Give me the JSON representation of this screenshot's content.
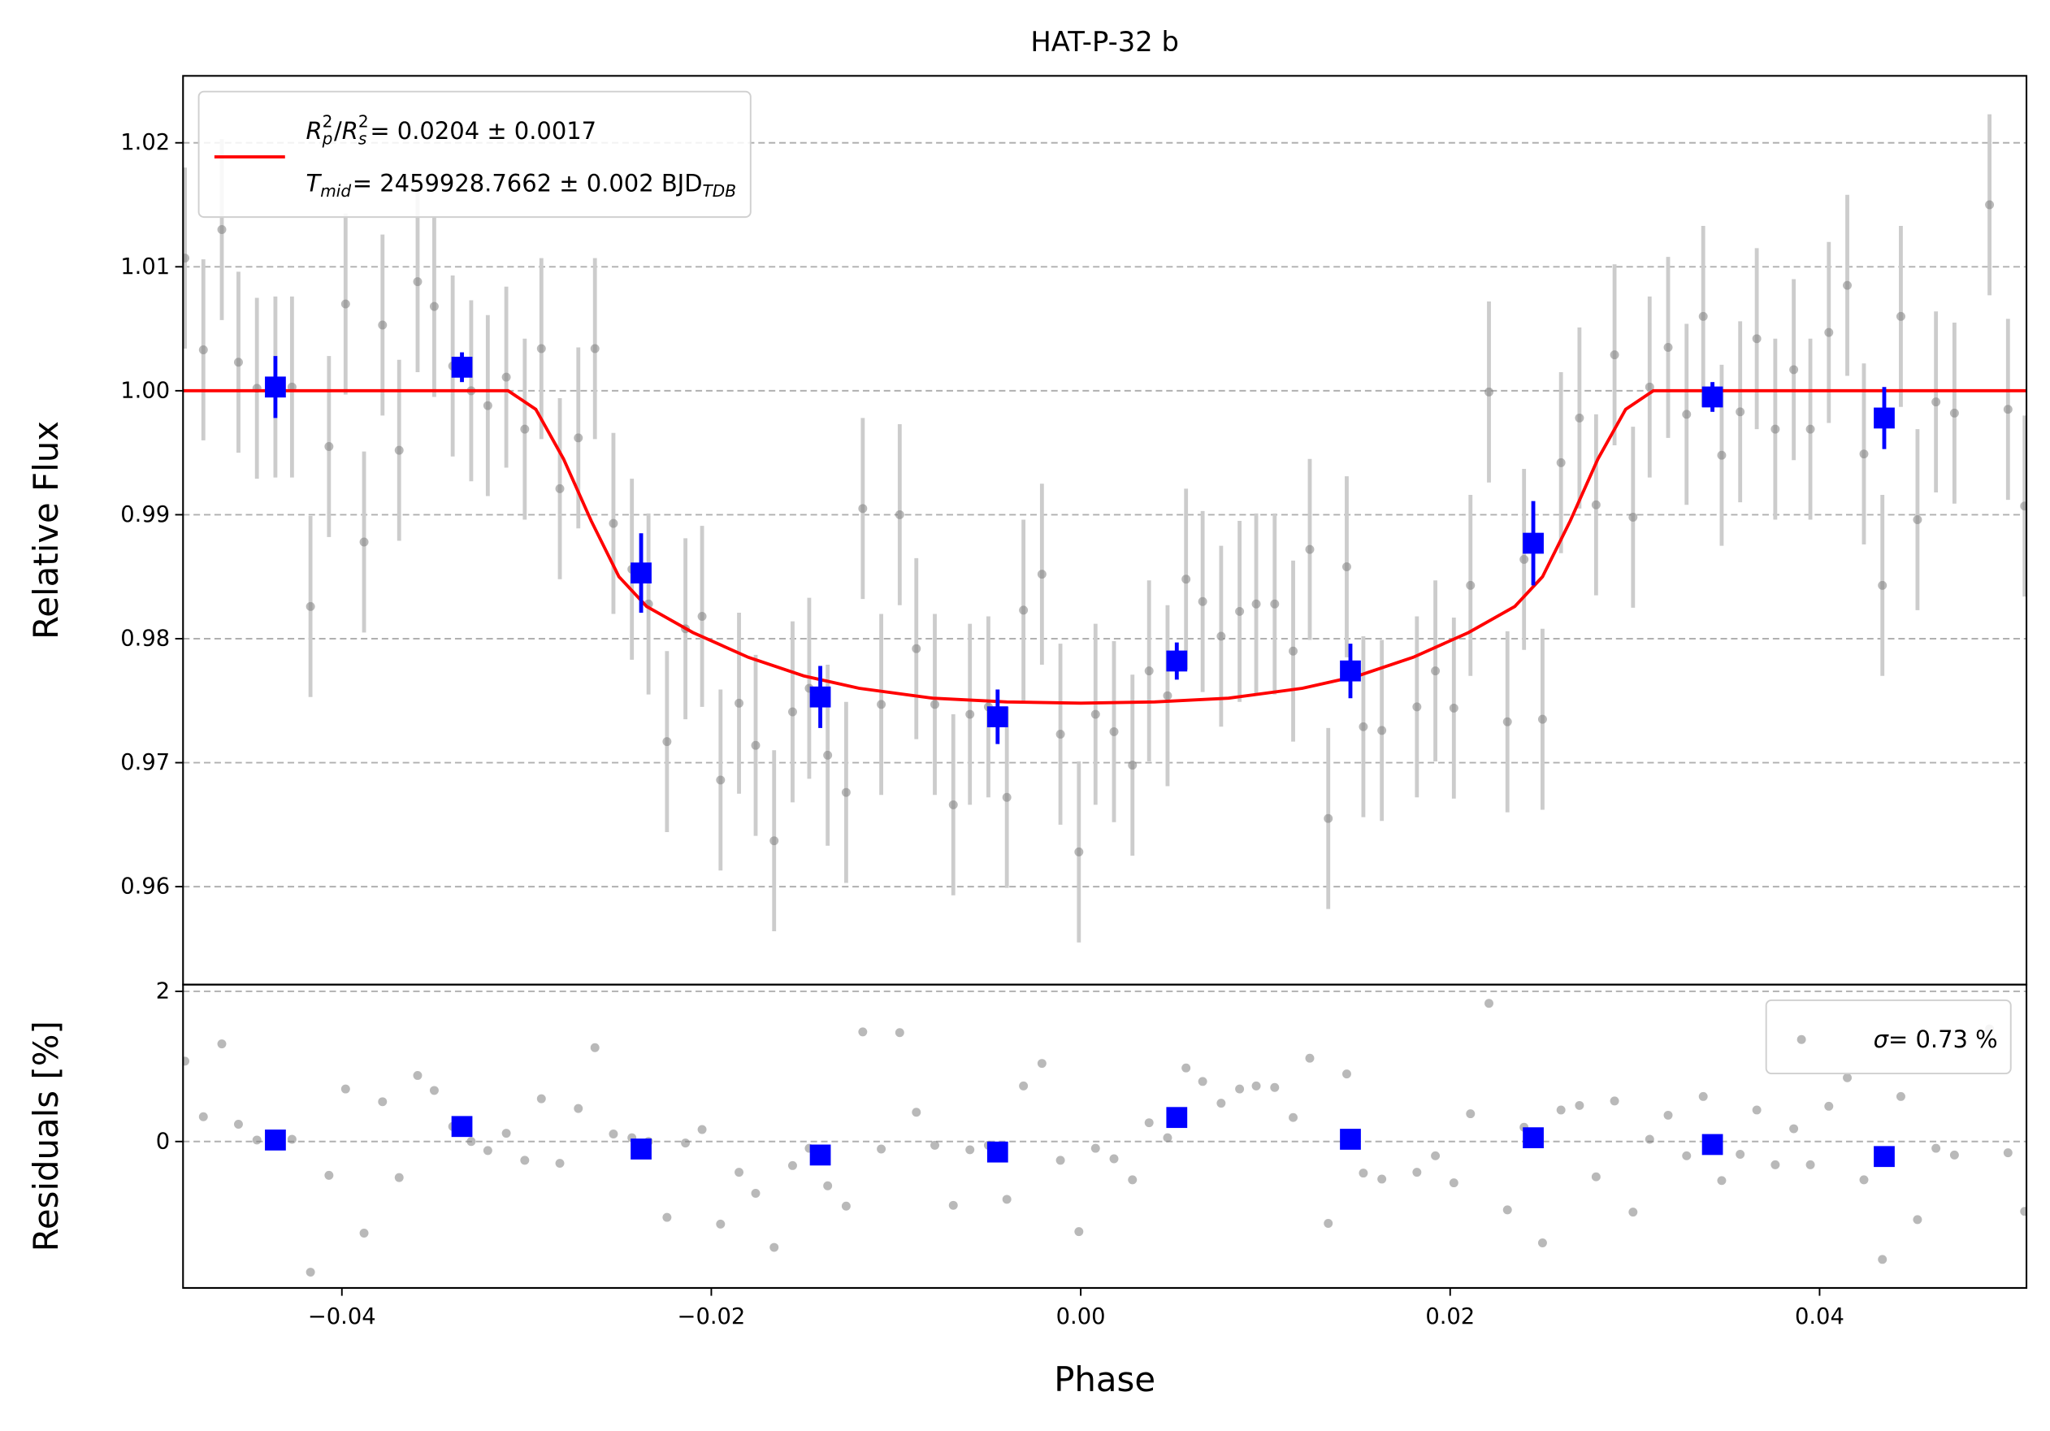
{
  "chart_data": [
    {
      "type": "scatter",
      "title": "HAT-P-32 b",
      "y_label": "Relative Flux",
      "xlim": [
        -0.0486,
        0.0512
      ],
      "ylim": [
        0.9521,
        1.0254
      ],
      "yticks": [
        0.96,
        0.97,
        0.98,
        0.99,
        {
          "value": 1,
          "label": "1.00"
        },
        1.01,
        1.02
      ],
      "grid": true,
      "legend": "upper left",
      "series": [
        {
          "type": "scatter",
          "marker": "circle",
          "color": "#808080",
          "error_color": "#cccccc",
          "error": 0.0073,
          "x": [
            -0.0485,
            -0.0475,
            -0.0465,
            -0.0456,
            -0.0446,
            -0.0436,
            -0.0427,
            -0.0417,
            -0.0407,
            -0.0398,
            -0.0388,
            -0.0378,
            -0.0369,
            -0.0359,
            -0.035,
            -0.034,
            -0.033,
            -0.0321,
            -0.0311,
            -0.0301,
            -0.0292,
            -0.0282,
            -0.0272,
            -0.0263,
            -0.0253,
            -0.0243,
            -0.0234,
            -0.0224,
            -0.0214,
            -0.0205,
            -0.0195,
            -0.0185,
            -0.0176,
            -0.0166,
            -0.0156,
            -0.0147,
            -0.0137,
            -0.0127,
            -0.0118,
            -0.0108,
            -0.0098,
            -0.0089,
            -0.0079,
            -0.0069,
            -0.006,
            -0.005,
            -0.004,
            -0.0031,
            -0.0021,
            -0.0011,
            -0.0001,
            0.0008,
            0.0018,
            0.0028,
            0.0037,
            0.0047,
            0.0057,
            0.0066,
            0.0076,
            0.0086,
            0.0095,
            0.0105,
            0.0115,
            0.0124,
            0.0134,
            0.0144,
            0.0153,
            0.0163,
            0.0182,
            0.0192,
            0.0202,
            0.0211,
            0.0221,
            0.0231,
            0.024,
            0.025,
            0.026,
            0.027,
            0.0279,
            0.0289,
            0.0299,
            0.0308,
            0.0318,
            0.0328,
            0.0337,
            0.0347,
            0.0357,
            0.0366,
            0.0376,
            0.0386,
            0.0395,
            0.0405,
            0.0415,
            0.0424,
            0.0434,
            0.0444,
            0.0453,
            0.0463,
            0.0473,
            0.0492,
            0.0502,
            0.0511
          ],
          "values": [
            1.0107,
            1.0033,
            1.013,
            1.0023,
            1.0002,
            1.0003,
            1.0003,
            0.9826,
            0.9955,
            1.007,
            0.9878,
            1.0053,
            0.9952,
            1.0088,
            1.0068,
            1.002,
            1.0,
            0.9988,
            1.0011,
            0.9969,
            1.0034,
            0.9921,
            0.9962,
            1.0034,
            0.9893,
            0.9856,
            0.9828,
            0.9717,
            0.9808,
            0.9818,
            0.9686,
            0.9748,
            0.9714,
            0.9637,
            0.9741,
            0.976,
            0.9706,
            0.9676,
            0.9905,
            0.9747,
            0.99,
            0.9792,
            0.9747,
            0.9666,
            0.9739,
            0.9745,
            0.9672,
            0.9823,
            0.9852,
            0.9723,
            0.9628,
            0.9739,
            0.9725,
            0.9698,
            0.9774,
            0.9754,
            0.9848,
            0.983,
            0.9802,
            0.9822,
            0.9828,
            0.9828,
            0.979,
            0.9872,
            0.9655,
            0.9858,
            0.9729,
            0.9726,
            0.9745,
            0.9774,
            0.9744,
            0.9843,
            0.9999,
            0.9733,
            0.9864,
            0.9735,
            0.9942,
            0.9978,
            0.9908,
            1.0029,
            0.9898,
            1.0003,
            1.0035,
            0.9981,
            1.006,
            0.9948,
            0.9983,
            1.0042,
            0.9969,
            1.0017,
            0.9969,
            1.0047,
            1.0085,
            0.9949,
            0.9843,
            1.006,
            0.9896,
            0.9991,
            0.9982,
            1.015,
            0.9985,
            0.9907
          ]
        },
        {
          "type": "line",
          "color": "#ff0000",
          "name_lines": [
            [
              {
                "t": "R",
                "math": true
              },
              {
                "sub": "p",
                "sup": "2"
              },
              {
                "t": "/"
              },
              {
                "t": "R",
                "math": true
              },
              {
                "sub": "s",
                "sup": "2"
              },
              {
                "t": " = 0.0204 ± 0.0017"
              }
            ],
            [
              {
                "t": "T",
                "math": true
              },
              {
                "sub": "mid"
              },
              {
                "t": " = 2459928.7662 ± 0.002 BJD"
              },
              {
                "sub": "TDB"
              }
            ]
          ],
          "x": [
            -0.0486,
            -0.031,
            -0.0295,
            -0.028,
            -0.0265,
            -0.025,
            -0.0235,
            -0.021,
            -0.018,
            -0.015,
            -0.012,
            -0.008,
            -0.004,
            0,
            0.004,
            0.008,
            0.012,
            0.015,
            0.018,
            0.021,
            0.0235,
            0.025,
            0.0265,
            0.028,
            0.0295,
            0.031,
            0.0512
          ],
          "values": [
            1,
            1,
            0.9985,
            0.9945,
            0.9895,
            0.985,
            0.9826,
            0.9805,
            0.9785,
            0.977,
            0.976,
            0.9752,
            0.9749,
            0.9748,
            0.9749,
            0.9752,
            0.976,
            0.977,
            0.9785,
            0.9805,
            0.9826,
            0.985,
            0.9895,
            0.9945,
            0.9985,
            1,
            1
          ]
        },
        {
          "type": "scatter",
          "marker": "square",
          "color": "#0000ff",
          "x": [
            -0.0436,
            -0.0335,
            -0.0238,
            -0.0141,
            -0.0045,
            0.0052,
            0.0146,
            0.0245,
            0.0342,
            0.0435
          ],
          "values": [
            1.0003,
            1.0019,
            0.9853,
            0.9753,
            0.9737,
            0.9782,
            0.9774,
            0.9877,
            0.9995,
            0.9978
          ],
          "errors": [
            0.0025,
            0.0012,
            0.0032,
            0.0025,
            0.0022,
            0.0015,
            0.0022,
            0.0034,
            0.0012,
            0.0025
          ]
        }
      ]
    },
    {
      "type": "scatter",
      "x_label": "Phase",
      "y_label": "Residuals [%]",
      "xlim": [
        -0.0486,
        0.0512
      ],
      "ylim": [
        -1.95,
        2.09
      ],
      "xticks": [
        {
          "value": -0.04,
          "label": "−0.04"
        },
        {
          "value": -0.02,
          "label": "−0.02"
        },
        {
          "value": 0,
          "label": "0.00"
        },
        0.02,
        0.04
      ],
      "yticks": [
        0,
        2
      ],
      "grid": true,
      "legend": "upper right",
      "series": [
        {
          "type": "scatter",
          "marker": "circle",
          "color": "#808080",
          "name_lines": [
            [
              {
                "t": "σ",
                "math": true
              },
              {
                "t": " = 0.73 %"
              }
            ]
          ],
          "x": [
            -0.0485,
            -0.0475,
            -0.0465,
            -0.0456,
            -0.0446,
            -0.0436,
            -0.0427,
            -0.0417,
            -0.0407,
            -0.0398,
            -0.0388,
            -0.0378,
            -0.0369,
            -0.0359,
            -0.035,
            -0.034,
            -0.033,
            -0.0321,
            -0.0311,
            -0.0301,
            -0.0292,
            -0.0282,
            -0.0272,
            -0.0263,
            -0.0253,
            -0.0243,
            -0.0234,
            -0.0224,
            -0.0214,
            -0.0205,
            -0.0195,
            -0.0185,
            -0.0176,
            -0.0166,
            -0.0156,
            -0.0147,
            -0.0137,
            -0.0127,
            -0.0118,
            -0.0108,
            -0.0098,
            -0.0089,
            -0.0079,
            -0.0069,
            -0.006,
            -0.005,
            -0.004,
            -0.0031,
            -0.0021,
            -0.0011,
            -0.0001,
            0.0008,
            0.0018,
            0.0028,
            0.0037,
            0.0047,
            0.0057,
            0.0066,
            0.0076,
            0.0086,
            0.0095,
            0.0105,
            0.0115,
            0.0124,
            0.0134,
            0.0144,
            0.0153,
            0.0163,
            0.0182,
            0.0192,
            0.0202,
            0.0211,
            0.0221,
            0.0231,
            0.024,
            0.025,
            0.026,
            0.027,
            0.0279,
            0.0289,
            0.0299,
            0.0308,
            0.0318,
            0.0328,
            0.0337,
            0.0347,
            0.0357,
            0.0366,
            0.0376,
            0.0386,
            0.0395,
            0.0405,
            0.0415,
            0.0424,
            0.0434,
            0.0444,
            0.0453,
            0.0463,
            0.0473,
            0.0492,
            0.0502,
            0.0511
          ],
          "values": [
            1.07,
            0.33,
            1.3,
            0.23,
            0.02,
            0.03,
            0.03,
            -1.74,
            -0.45,
            0.7,
            -1.22,
            0.53,
            -0.48,
            0.88,
            0.68,
            0.2,
            0,
            -0.12,
            0.11,
            -0.25,
            0.57,
            -0.29,
            0.44,
            1.25,
            0.1,
            0.05,
            0,
            -1.01,
            -0.02,
            0.16,
            -1.1,
            -0.41,
            -0.69,
            -1.41,
            -0.32,
            -0.09,
            -0.59,
            -0.86,
            1.46,
            -0.1,
            1.45,
            0.39,
            -0.05,
            -0.85,
            -0.11,
            -0.05,
            -0.77,
            0.74,
            1.04,
            -0.25,
            -1.2,
            -0.09,
            -0.23,
            -0.51,
            0.25,
            0.05,
            0.98,
            0.8,
            0.51,
            0.7,
            0.74,
            0.72,
            0.32,
            1.11,
            -1.09,
            0.9,
            -0.42,
            -0.5,
            -0.41,
            -0.19,
            -0.55,
            0.37,
            1.84,
            -0.91,
            0.19,
            -1.35,
            0.42,
            0.48,
            -0.47,
            0.54,
            -0.94,
            0.03,
            0.35,
            -0.19,
            0.6,
            -0.52,
            -0.17,
            0.42,
            -0.31,
            0.17,
            -0.31,
            0.47,
            0.85,
            -0.51,
            -1.57,
            0.6,
            -1.04,
            -0.09,
            -0.18,
            1.5,
            -0.15,
            -0.93
          ]
        },
        {
          "type": "scatter",
          "marker": "square",
          "color": "#0000ff",
          "x": [
            -0.0436,
            -0.0335,
            -0.0238,
            -0.0141,
            -0.0045,
            0.0052,
            0.0146,
            0.0245,
            0.0342,
            0.0435
          ],
          "values": [
            0.02,
            0.2,
            -0.1,
            -0.18,
            -0.14,
            0.32,
            0.03,
            0.05,
            -0.04,
            -0.2
          ]
        }
      ]
    }
  ]
}
